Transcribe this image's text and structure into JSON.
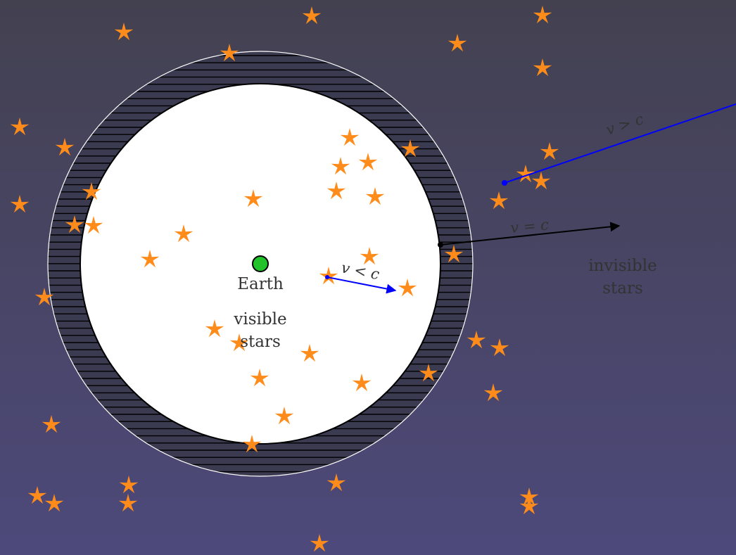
{
  "labels": {
    "earth": "Earth",
    "visible_line1": "visible",
    "visible_line2": "stars",
    "invisible_line1": "invisible",
    "invisible_line2": "stars",
    "v_less_c": "v < c",
    "v_equal_c": "v = c",
    "v_greater_c": "v > c"
  },
  "colors": {
    "background_top": "#434150",
    "background_bottom": "#4d497b",
    "star": "#ff8c1a",
    "earth": "#22c22b",
    "hatch_fill": "#3a3a50",
    "hatch_line": "#000000",
    "inner_sphere": "#ffffff",
    "arrow_fast": "#0000ff",
    "arrow_light": "#000000",
    "text_dark": "#333333"
  },
  "icons": {
    "star": "star-icon",
    "earth": "earth-icon"
  }
}
